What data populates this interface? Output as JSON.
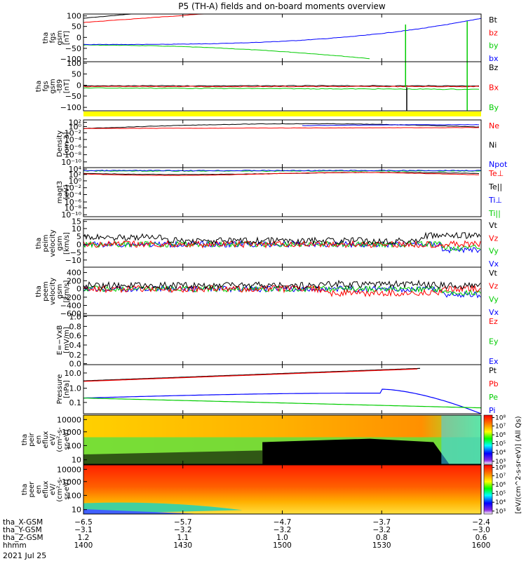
{
  "title": "P5 (TH-A) fields and on-board moments overview",
  "colors": {
    "black": "#000000",
    "red": "#ff0000",
    "green": "#00cc00",
    "blue": "#0000ff",
    "yellow": "#ffff00"
  },
  "chart_data": {
    "type": "line",
    "title": "P5 (TH-A) fields and on-board moments overview",
    "date": "2021 Jul 25",
    "panels": [
      {
        "id": "fgs",
        "ylabel": [
          "tha",
          "fgs",
          "gsm",
          "[nT]"
        ],
        "yticks": [
          "100",
          "50",
          "0",
          "−50",
          "−100"
        ],
        "ylim": [
          -100,
          100
        ],
        "legend": [
          {
            "name": "Bt",
            "color": "#000000"
          },
          {
            "name": "bz",
            "color": "#ff0000"
          },
          {
            "name": "by",
            "color": "#00cc00"
          },
          {
            "name": "bx",
            "color": "#0000ff"
          }
        ]
      },
      {
        "id": "fgs-dsl",
        "ylabel": [
          "tha",
          "fgs",
          "gsm",
          "-t89",
          "[nT]"
        ],
        "yticks": [
          "100",
          "50",
          "0",
          "−50",
          "−100"
        ],
        "ylim": [
          -130,
          130
        ],
        "legend": [
          {
            "name": "Bz",
            "color": "#000000"
          },
          {
            "name": "Bx",
            "color": "#ff0000"
          },
          {
            "name": "By",
            "color": "#00cc00"
          }
        ]
      },
      {
        "id": "density",
        "ylabel": [
          "Density",
          "[cm-3]"
        ],
        "yticks": [
          "10²",
          "10⁰",
          "10⁻²",
          "10⁻⁴",
          "10⁻⁶",
          "10⁻⁸",
          "10⁻¹⁰"
        ],
        "log": true,
        "legend": [
          {
            "name": "Ne",
            "color": "#ff0000"
          },
          {
            "name": "Ni",
            "color": "#000000"
          },
          {
            "name": "Npot",
            "color": "#0000ff"
          }
        ]
      },
      {
        "id": "temp",
        "ylabel": [
          "magt3",
          "[eV]"
        ],
        "yticks": [
          "10⁴",
          "10²",
          "10⁰",
          "10⁻²",
          "10⁻⁴",
          "10⁻⁶",
          "10⁻⁸",
          "10⁻¹⁰"
        ],
        "log": true,
        "legend": [
          {
            "name": "Te⊥",
            "color": "#ff0000"
          },
          {
            "name": "Te||",
            "color": "#000000"
          },
          {
            "name": "Ti⊥",
            "color": "#0000ff"
          },
          {
            "name": "Ti||",
            "color": "#00cc00"
          }
        ]
      },
      {
        "id": "peim-vel",
        "ylabel": [
          "tha",
          "peim",
          "velocity",
          "gsm",
          "[km/s]"
        ],
        "yticks": [
          "15",
          "10",
          "5",
          "0",
          "−5",
          "−10"
        ],
        "ylim": [
          -12,
          15
        ],
        "legend": [
          {
            "name": "Vt",
            "color": "#000000"
          },
          {
            "name": "Vz",
            "color": "#ff0000"
          },
          {
            "name": "Vy",
            "color": "#00cc00"
          },
          {
            "name": "Vx",
            "color": "#0000ff"
          }
        ]
      },
      {
        "id": "peem-vel",
        "ylabel": [
          "tha",
          "peem",
          "velocity",
          "gsm",
          "[km/s]"
        ],
        "yticks": [
          "400",
          "200",
          "0",
          "−200",
          "−400",
          "−600"
        ],
        "ylim": [
          -600,
          600
        ],
        "legend": [
          {
            "name": "Vt",
            "color": "#000000"
          },
          {
            "name": "Vz",
            "color": "#ff0000"
          },
          {
            "name": "Vy",
            "color": "#00cc00"
          },
          {
            "name": "Vx",
            "color": "#0000ff"
          }
        ]
      },
      {
        "id": "efield",
        "ylabel": [
          "E=−VxB",
          "[mV/m]"
        ],
        "yticks": [
          "1.0",
          "0.8",
          "0.6",
          "0.4",
          "0.2",
          "0.0"
        ],
        "ylim": [
          0,
          1
        ],
        "legend": [
          {
            "name": "Ez",
            "color": "#ff0000"
          },
          {
            "name": "Ey",
            "color": "#00cc00"
          },
          {
            "name": "Ex",
            "color": "#0000ff"
          }
        ]
      },
      {
        "id": "pressure",
        "ylabel": [
          "Pressure",
          "[nPa]"
        ],
        "yticks": [
          "10.0",
          "1.0",
          "0.1"
        ],
        "log": true,
        "legend": [
          {
            "name": "Pt",
            "color": "#000000"
          },
          {
            "name": "Pb",
            "color": "#ff0000"
          },
          {
            "name": "Pe",
            "color": "#00cc00"
          },
          {
            "name": "Pi",
            "color": "#0000ff"
          }
        ]
      },
      {
        "id": "peir",
        "ylabel": [
          "tha",
          "peir",
          "en",
          "eflux",
          "eV/",
          "(cm²-s-",
          "sr-eV)"
        ],
        "yticks": [
          "10000",
          "1000",
          "100",
          "10"
        ],
        "type": "heatmap"
      },
      {
        "id": "peer",
        "ylabel": [
          "tha",
          "peer",
          "en",
          "eflux",
          "eV/",
          "(cm²-s-",
          "sr-eV)"
        ],
        "yticks": [
          "10000",
          "1000",
          "100",
          "10"
        ],
        "type": "heatmap"
      }
    ],
    "colorbar": {
      "label": "[eV/(cm^2-s-sr-eV)] (All Qs)",
      "ticks_upper": [
        "10⁸",
        "10⁷",
        "10⁶",
        "10⁵",
        "10⁴",
        "10³"
      ],
      "ticks_lower": [
        "10⁸",
        "10⁷",
        "10⁶",
        "10⁵",
        "10⁴",
        "10³"
      ]
    },
    "xaxis": {
      "rows": [
        {
          "label": "tha_X-GSM",
          "values": [
            "−6.5",
            "−5.7",
            "−4.7",
            "−3.7",
            "−2.4"
          ]
        },
        {
          "label": "tha_Y-GSM",
          "values": [
            "−3.1",
            "−3.2",
            "−3.2",
            "−3.2",
            "−3.0"
          ]
        },
        {
          "label": "tha_Z-GSM",
          "values": [
            "1.2",
            "1.1",
            "1.0",
            "0.8",
            "0.6"
          ]
        },
        {
          "label": "hhmm",
          "values": [
            "1400",
            "1430",
            "1500",
            "1530",
            "1600"
          ]
        }
      ],
      "tick_minutes": [
        0,
        30,
        60,
        90,
        120
      ],
      "range_minutes": [
        0,
        120
      ]
    },
    "grid": false,
    "legend_position": "right"
  }
}
